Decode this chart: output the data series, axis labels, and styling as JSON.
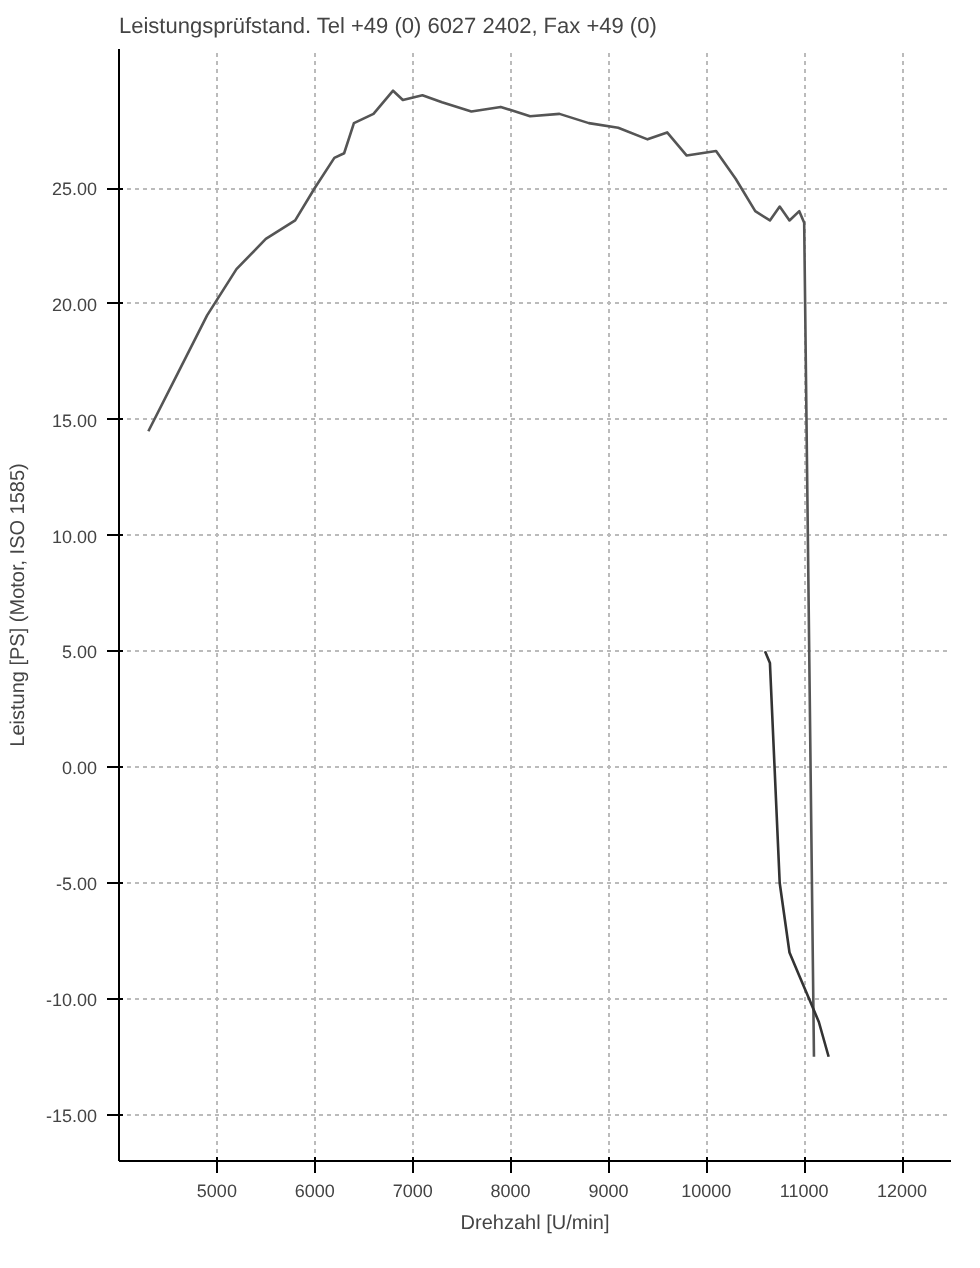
{
  "chart_data": {
    "type": "line",
    "title": "Leistungsprüfstand. Tel +49 (0) 6027 2402, Fax +49 (0)",
    "ylabel": "Leistung [PS] (Motor, ISO 1585)",
    "xlabel": "Drehzahl [U/min]",
    "xlim": [
      4000,
      12500
    ],
    "ylim": [
      -17,
      31
    ],
    "xticks": [
      5000,
      6000,
      7000,
      8000,
      9000,
      10000,
      11000,
      12000
    ],
    "yticks": [
      {
        "value": -15,
        "label": "-15.00"
      },
      {
        "value": -10,
        "label": "-10.00"
      },
      {
        "value": -5,
        "label": "-5.00"
      },
      {
        "value": 0,
        "label": "0.00"
      },
      {
        "value": 5,
        "label": "5.00"
      },
      {
        "value": 10,
        "label": "10.00"
      },
      {
        "value": 15,
        "label": "15.00"
      },
      {
        "value": 20,
        "label": "20.00"
      },
      {
        "value": 25,
        "label": "25.00"
      }
    ],
    "grid": true,
    "line_style": "solid",
    "series": [
      {
        "color": "#555555",
        "x": [
          4300,
          4600,
          4900,
          5200,
          5500,
          5800,
          6000,
          6200,
          6300,
          6400,
          6600,
          6800,
          6900,
          7100,
          7300,
          7600,
          7900,
          8200,
          8500,
          8800,
          9100,
          9400,
          9600,
          9800,
          10100,
          10300,
          10500,
          10650,
          10750,
          10850,
          10950,
          11000,
          11100
        ],
        "values": [
          14.5,
          17,
          19.5,
          21.5,
          22.8,
          23.6,
          25,
          26.3,
          26.5,
          27.8,
          28.2,
          29.2,
          28.8,
          29,
          28.7,
          28.3,
          28.5,
          28.1,
          28.2,
          27.8,
          27.6,
          27.1,
          27.4,
          26.4,
          26.6,
          25.4,
          24.0,
          23.6,
          24.2,
          23.6,
          24.0,
          23.5,
          -12.5
        ]
      },
      {
        "color": "#333333",
        "x": [
          10600,
          10650,
          10750,
          10850,
          10950,
          11050,
          11150,
          11250
        ],
        "values": [
          5,
          4.5,
          -5,
          -8,
          -9,
          -10,
          -11,
          -12.5
        ]
      }
    ]
  }
}
